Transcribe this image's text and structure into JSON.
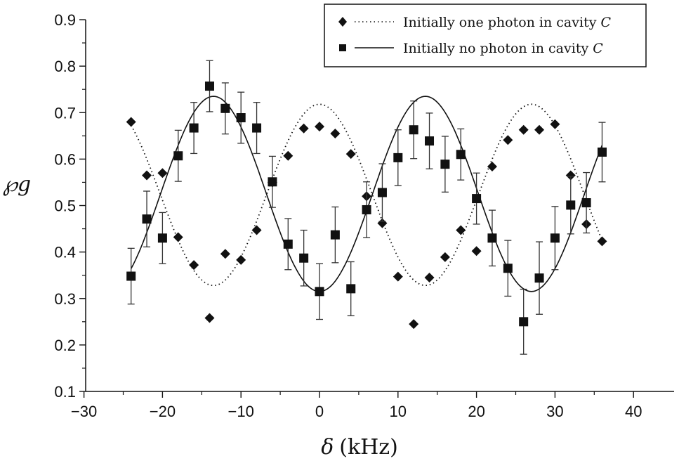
{
  "chart_data": {
    "type": "scatter",
    "xlabel": "δ",
    "xunit": "(kHz)",
    "ylabel": "℘g",
    "xlim": [
      -30,
      45
    ],
    "ylim": [
      0.1,
      0.9
    ],
    "xticks": [
      "−30",
      "−20",
      "−10",
      "0",
      "10",
      "20",
      "30",
      "40"
    ],
    "xtick_values": [
      -30,
      -20,
      -10,
      0,
      10,
      20,
      30,
      40
    ],
    "yticks": [
      "0.1",
      "0.2",
      "0.3",
      "0.4",
      "0.5",
      "0.6",
      "0.7",
      "0.8",
      "0.9"
    ],
    "ytick_values": [
      0.1,
      0.2,
      0.3,
      0.4,
      0.5,
      0.6,
      0.7,
      0.8,
      0.9
    ],
    "legend_position": "top-right",
    "series": [
      {
        "name": "Initially one photon in cavity",
        "name_italic": "C",
        "marker": "diamond",
        "fit_style": "dotted",
        "points": [
          [
            -24,
            0.68
          ],
          [
            -22,
            0.565
          ],
          [
            -20,
            0.57
          ],
          [
            -18,
            0.432
          ],
          [
            -16,
            0.372
          ],
          [
            -14,
            0.258
          ],
          [
            -12,
            0.396
          ],
          [
            -10,
            0.383
          ],
          [
            -8,
            0.447
          ],
          [
            -6,
            0.55
          ],
          [
            -4,
            0.607
          ],
          [
            -2,
            0.666
          ],
          [
            0,
            0.67
          ],
          [
            2,
            0.655
          ],
          [
            4,
            0.611
          ],
          [
            6,
            0.52
          ],
          [
            8,
            0.462
          ],
          [
            10,
            0.347
          ],
          [
            12,
            0.245
          ],
          [
            14,
            0.345
          ],
          [
            16,
            0.389
          ],
          [
            18,
            0.447
          ],
          [
            20,
            0.402
          ],
          [
            22,
            0.584
          ],
          [
            24,
            0.641
          ],
          [
            26,
            0.663
          ],
          [
            28,
            0.663
          ],
          [
            30,
            0.675
          ],
          [
            32,
            0.565
          ],
          [
            34,
            0.46
          ],
          [
            36,
            0.423
          ]
        ],
        "fit": {
          "mean": 0.523,
          "amplitude": 0.195,
          "period_khz": 27,
          "peak_x": 0,
          "x_range": [
            -24,
            36
          ]
        }
      },
      {
        "name": "Initially no photon in cavity",
        "name_italic": "C",
        "marker": "square",
        "fit_style": "solid",
        "points": [
          [
            -24,
            0.348,
            0.06
          ],
          [
            -22,
            0.471,
            0.06
          ],
          [
            -20,
            0.43,
            0.055
          ],
          [
            -18,
            0.607,
            0.055
          ],
          [
            -16,
            0.667,
            0.055
          ],
          [
            -14,
            0.757,
            0.055
          ],
          [
            -12,
            0.709,
            0.055
          ],
          [
            -10,
            0.689,
            0.055
          ],
          [
            -8,
            0.667,
            0.055
          ],
          [
            -6,
            0.551,
            0.055
          ],
          [
            -4,
            0.417,
            0.055
          ],
          [
            -2,
            0.387,
            0.06
          ],
          [
            0,
            0.315,
            0.06
          ],
          [
            2,
            0.437,
            0.06
          ],
          [
            4,
            0.321,
            0.058
          ],
          [
            6,
            0.491,
            0.06
          ],
          [
            8,
            0.528,
            0.062
          ],
          [
            10,
            0.603,
            0.06
          ],
          [
            12,
            0.663,
            0.062
          ],
          [
            14,
            0.639,
            0.06
          ],
          [
            16,
            0.589,
            0.06
          ],
          [
            18,
            0.61,
            0.055
          ],
          [
            20,
            0.515,
            0.055
          ],
          [
            22,
            0.43,
            0.06
          ],
          [
            24,
            0.365,
            0.06
          ],
          [
            26,
            0.25,
            0.07
          ],
          [
            28,
            0.344,
            0.078
          ],
          [
            30,
            0.43,
            0.068
          ],
          [
            32,
            0.501,
            0.062
          ],
          [
            34,
            0.506,
            0.065
          ],
          [
            36,
            0.615,
            0.064
          ]
        ],
        "fit": {
          "mean": 0.525,
          "amplitude": 0.21,
          "period_khz": 27,
          "peak_x": -13.5,
          "x_range": [
            -24,
            36
          ]
        }
      }
    ]
  }
}
